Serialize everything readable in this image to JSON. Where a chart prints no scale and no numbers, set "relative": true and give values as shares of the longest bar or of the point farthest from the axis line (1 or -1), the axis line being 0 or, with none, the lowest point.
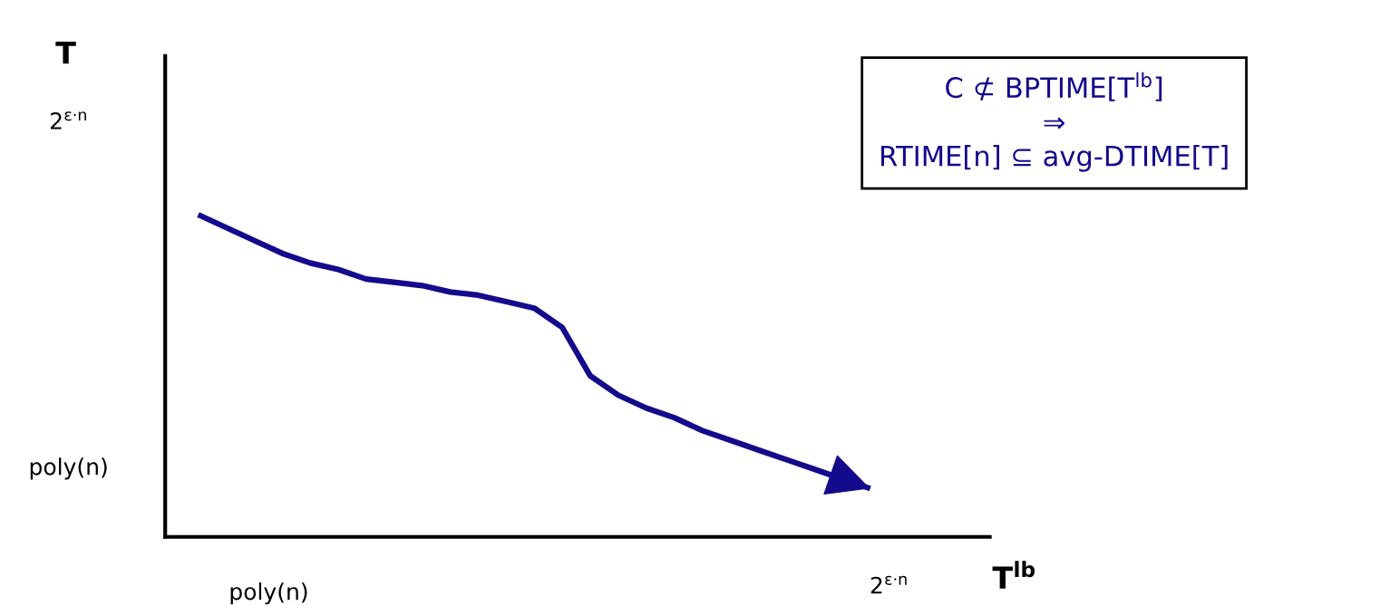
{
  "chart_data": {
    "type": "line",
    "relative": true,
    "xlabel": "T$^{lb}$",
    "categories": [
      null,
      null,
      null,
      null,
      null,
      null,
      null,
      null,
      null,
      null,
      null,
      null,
      null,
      null,
      null,
      null,
      null,
      null,
      null,
      null,
      null,
      null,
      null,
      null,
      null
    ],
    "series": [
      {
        "color": "#140a8c",
        "values": [
          1.0,
          0.96,
          0.92,
          0.88,
          0.85,
          0.83,
          0.8,
          0.79,
          0.78,
          0.76,
          0.75,
          0.73,
          0.71,
          0.65,
          0.5,
          0.44,
          0.4,
          0.37,
          0.33,
          0.3,
          0.27,
          0.24,
          0.21,
          0.18,
          0.15
        ]
      }
    ],
    "annotations": [
      "C ⊄ BPTIME[T$^{lb}$]\n⇒\nRTIME[n] ⊆ avg-DTIME[T]",
      "poly(n)",
      "2$^{ε·n}$",
      "poly(n)",
      "2$^{ε·n}$",
      "T"
    ]
  }
}
